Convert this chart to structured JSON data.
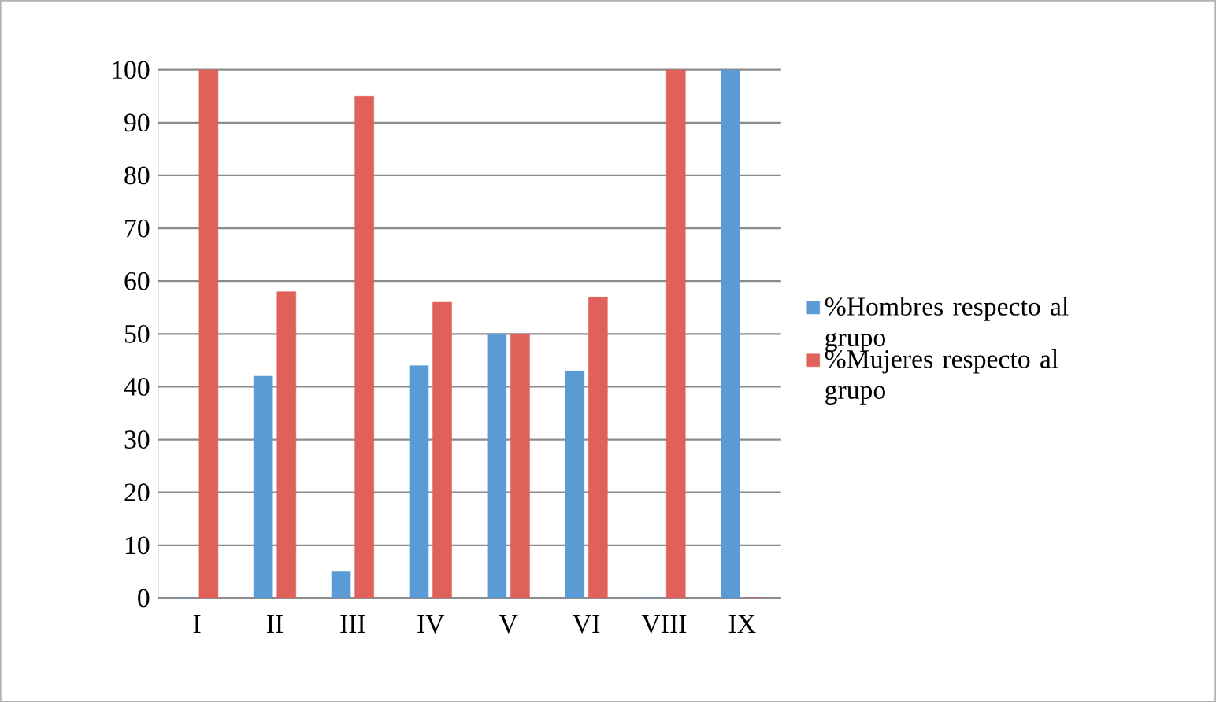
{
  "chart_data": {
    "type": "bar",
    "categories": [
      "I",
      "II",
      "III",
      "IV",
      "V",
      "VI",
      "VIII",
      "IX"
    ],
    "series": [
      {
        "name": "%Hombres respecto al grupo",
        "color": "#5b9bd5",
        "values": [
          0,
          42,
          5,
          44,
          50,
          43,
          0,
          100
        ]
      },
      {
        "name": "%Mujeres respecto al grupo",
        "color": "#e0605a",
        "values": [
          100,
          58,
          95,
          56,
          50,
          57,
          100,
          0
        ]
      }
    ],
    "ylim": [
      0,
      100
    ],
    "yticks": [
      0,
      10,
      20,
      30,
      40,
      50,
      60,
      70,
      80,
      90,
      100
    ],
    "grid": "y",
    "legend": "right"
  }
}
